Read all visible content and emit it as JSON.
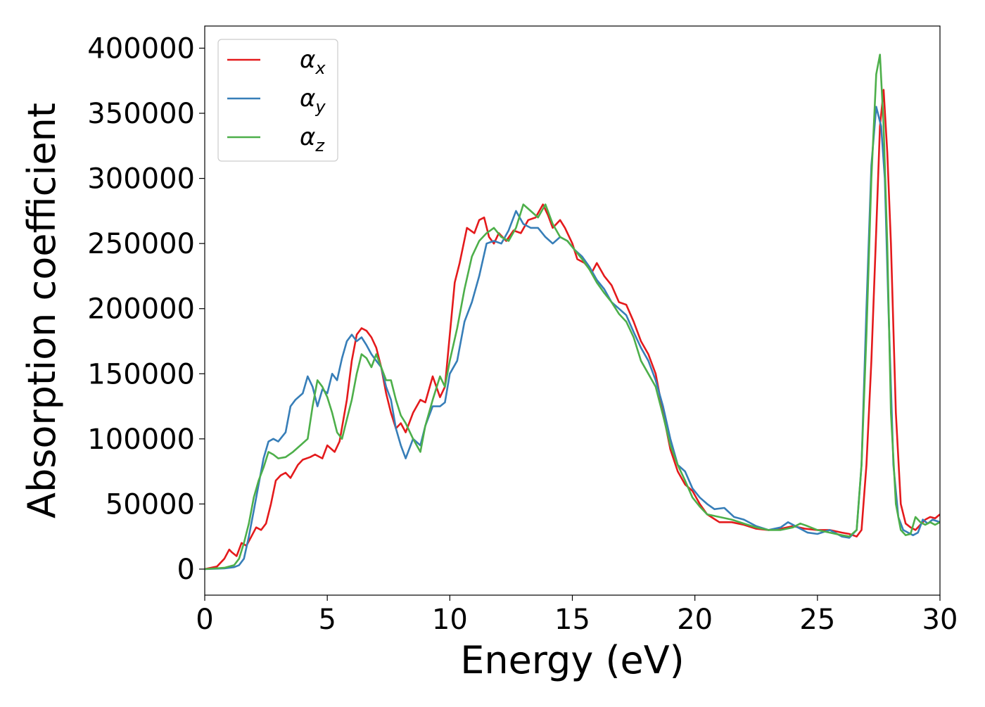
{
  "chart_data": {
    "type": "line",
    "title": "",
    "xlabel": "Energy (eV)",
    "ylabel": "Absorption coefficient",
    "xlim": [
      0,
      30
    ],
    "ylim": [
      -20000,
      417000
    ],
    "xticks": [
      0,
      5,
      10,
      15,
      20,
      25,
      30
    ],
    "yticks": [
      0,
      50000,
      100000,
      150000,
      200000,
      250000,
      300000,
      350000,
      400000
    ],
    "grid": false,
    "legend_position": "top-left",
    "series": [
      {
        "name": "αx",
        "name_base": "α",
        "name_sub": "x",
        "color": "#e41a1c",
        "x": [
          0,
          0.5,
          0.8,
          1.0,
          1.1,
          1.3,
          1.5,
          1.7,
          1.9,
          2.1,
          2.3,
          2.5,
          2.7,
          2.9,
          3.1,
          3.3,
          3.5,
          3.8,
          4.0,
          4.3,
          4.5,
          4.8,
          5.0,
          5.3,
          5.5,
          5.8,
          6.0,
          6.2,
          6.4,
          6.6,
          6.8,
          7.0,
          7.2,
          7.4,
          7.6,
          7.8,
          8.0,
          8.2,
          8.5,
          8.8,
          9.0,
          9.3,
          9.6,
          9.8,
          10.0,
          10.2,
          10.4,
          10.7,
          11.0,
          11.2,
          11.4,
          11.6,
          11.8,
          12.0,
          12.3,
          12.6,
          12.9,
          13.2,
          13.5,
          13.8,
          14.0,
          14.2,
          14.5,
          14.7,
          15.0,
          15.2,
          15.5,
          15.8,
          16.0,
          16.3,
          16.6,
          16.9,
          17.2,
          17.5,
          17.8,
          18.1,
          18.4,
          18.7,
          19.0,
          19.3,
          19.6,
          19.9,
          20.2,
          20.5,
          21.0,
          21.5,
          22.0,
          22.5,
          23.0,
          23.5,
          24.0,
          24.5,
          25.0,
          25.5,
          26.0,
          26.3,
          26.6,
          26.8,
          27.0,
          27.2,
          27.4,
          27.55,
          27.7,
          27.85,
          28.0,
          28.2,
          28.4,
          28.6,
          28.8,
          29.0,
          29.2,
          29.4,
          29.6,
          29.8,
          30.0
        ],
        "y": [
          0,
          2000,
          8000,
          15000,
          13000,
          10000,
          20000,
          18000,
          25000,
          32000,
          30000,
          35000,
          50000,
          68000,
          72000,
          74000,
          70000,
          80000,
          84000,
          86000,
          88000,
          85000,
          95000,
          90000,
          98000,
          130000,
          160000,
          180000,
          185000,
          183000,
          178000,
          170000,
          155000,
          135000,
          120000,
          108000,
          112000,
          105000,
          120000,
          130000,
          128000,
          148000,
          132000,
          140000,
          180000,
          220000,
          235000,
          262000,
          258000,
          268000,
          270000,
          255000,
          250000,
          258000,
          252000,
          260000,
          258000,
          268000,
          270000,
          280000,
          272000,
          262000,
          268000,
          262000,
          250000,
          238000,
          235000,
          228000,
          235000,
          225000,
          218000,
          205000,
          203000,
          190000,
          175000,
          165000,
          150000,
          120000,
          92000,
          75000,
          65000,
          60000,
          50000,
          42000,
          36000,
          36000,
          34000,
          31000,
          30000,
          31000,
          33000,
          31000,
          30000,
          30000,
          28000,
          27000,
          25000,
          30000,
          80000,
          160000,
          260000,
          340000,
          368000,
          320000,
          250000,
          120000,
          50000,
          35000,
          32000,
          30000,
          34000,
          38000,
          40000,
          39000,
          42000
        ]
      },
      {
        "name": "αy",
        "name_base": "α",
        "name_sub": "y",
        "color": "#377eb8",
        "x": [
          0,
          0.8,
          1.2,
          1.4,
          1.6,
          1.8,
          2.0,
          2.2,
          2.4,
          2.6,
          2.8,
          3.0,
          3.3,
          3.5,
          3.7,
          4.0,
          4.2,
          4.4,
          4.6,
          4.8,
          5.0,
          5.2,
          5.4,
          5.6,
          5.8,
          6.0,
          6.2,
          6.4,
          6.6,
          6.8,
          7.0,
          7.2,
          7.4,
          7.6,
          7.8,
          8.0,
          8.2,
          8.5,
          8.8,
          9.0,
          9.3,
          9.6,
          9.8,
          10.0,
          10.3,
          10.6,
          10.9,
          11.2,
          11.5,
          11.8,
          12.1,
          12.4,
          12.7,
          13.0,
          13.3,
          13.6,
          13.9,
          14.2,
          14.5,
          14.8,
          15.1,
          15.4,
          15.7,
          16.0,
          16.3,
          16.6,
          16.9,
          17.2,
          17.5,
          17.8,
          18.1,
          18.4,
          18.7,
          19.0,
          19.3,
          19.6,
          19.9,
          20.2,
          20.5,
          20.8,
          21.2,
          21.6,
          22.0,
          22.5,
          23.0,
          23.5,
          23.8,
          24.2,
          24.6,
          25.0,
          25.5,
          26.0,
          26.3,
          26.6,
          26.8,
          27.0,
          27.2,
          27.4,
          27.6,
          27.75,
          27.9,
          28.1,
          28.3,
          28.5,
          28.7,
          28.9,
          29.1,
          29.3,
          29.5,
          29.7,
          30.0
        ],
        "y": [
          0,
          500,
          1500,
          3000,
          8000,
          25000,
          45000,
          65000,
          85000,
          98000,
          100000,
          98000,
          105000,
          125000,
          130000,
          135000,
          148000,
          140000,
          125000,
          138000,
          135000,
          150000,
          145000,
          162000,
          175000,
          180000,
          175000,
          178000,
          172000,
          165000,
          160000,
          155000,
          140000,
          130000,
          108000,
          95000,
          85000,
          100000,
          95000,
          110000,
          125000,
          125000,
          128000,
          150000,
          160000,
          190000,
          205000,
          225000,
          250000,
          252000,
          250000,
          260000,
          275000,
          265000,
          262000,
          262000,
          255000,
          250000,
          255000,
          252000,
          245000,
          240000,
          232000,
          222000,
          215000,
          205000,
          200000,
          195000,
          182000,
          170000,
          160000,
          145000,
          125000,
          100000,
          80000,
          75000,
          62000,
          55000,
          50000,
          46000,
          47000,
          40000,
          38000,
          33000,
          30000,
          32000,
          36000,
          32000,
          28000,
          27000,
          30000,
          25000,
          24000,
          30000,
          80000,
          200000,
          310000,
          355000,
          340000,
          300000,
          200000,
          80000,
          40000,
          30000,
          28000,
          26000,
          28000,
          38000,
          35000,
          38000,
          36000
        ]
      },
      {
        "name": "αz",
        "name_base": "α",
        "name_sub": "z",
        "color": "#4daf4a",
        "x": [
          0,
          0.8,
          1.2,
          1.4,
          1.6,
          1.8,
          2.0,
          2.2,
          2.4,
          2.6,
          2.8,
          3.0,
          3.3,
          3.6,
          3.9,
          4.2,
          4.4,
          4.6,
          4.8,
          5.0,
          5.2,
          5.4,
          5.6,
          5.8,
          6.0,
          6.2,
          6.4,
          6.6,
          6.8,
          7.0,
          7.2,
          7.4,
          7.6,
          7.8,
          8.0,
          8.2,
          8.5,
          8.8,
          9.0,
          9.3,
          9.6,
          9.8,
          10.0,
          10.3,
          10.6,
          10.9,
          11.2,
          11.5,
          11.8,
          12.1,
          12.4,
          12.7,
          13.0,
          13.3,
          13.6,
          13.9,
          14.2,
          14.5,
          14.8,
          15.1,
          15.4,
          15.7,
          16.0,
          16.3,
          16.6,
          16.9,
          17.2,
          17.5,
          17.8,
          18.1,
          18.4,
          18.7,
          19.0,
          19.3,
          19.6,
          19.9,
          20.2,
          20.5,
          21.0,
          21.5,
          22.0,
          22.5,
          23.0,
          23.5,
          24.0,
          24.3,
          24.6,
          25.0,
          25.5,
          26.0,
          26.3,
          26.6,
          26.8,
          27.0,
          27.2,
          27.4,
          27.55,
          27.7,
          27.85,
          28.0,
          28.2,
          28.4,
          28.6,
          28.8,
          29.0,
          29.2,
          29.4,
          29.6,
          29.8,
          30.0
        ],
        "y": [
          0,
          1000,
          3000,
          8000,
          20000,
          35000,
          55000,
          68000,
          78000,
          90000,
          88000,
          85000,
          86000,
          90000,
          95000,
          100000,
          125000,
          145000,
          140000,
          132000,
          120000,
          105000,
          100000,
          115000,
          130000,
          150000,
          165000,
          162000,
          155000,
          165000,
          155000,
          145000,
          145000,
          130000,
          118000,
          112000,
          100000,
          90000,
          110000,
          130000,
          148000,
          140000,
          160000,
          185000,
          215000,
          240000,
          252000,
          258000,
          262000,
          255000,
          252000,
          262000,
          280000,
          275000,
          270000,
          280000,
          265000,
          255000,
          252000,
          245000,
          238000,
          230000,
          220000,
          212000,
          205000,
          196000,
          190000,
          178000,
          160000,
          150000,
          140000,
          118000,
          95000,
          80000,
          68000,
          55000,
          48000,
          42000,
          40000,
          38000,
          35000,
          32000,
          30000,
          30000,
          32000,
          35000,
          33000,
          30000,
          28000,
          26000,
          25000,
          30000,
          80000,
          180000,
          300000,
          380000,
          395000,
          340000,
          250000,
          120000,
          50000,
          30000,
          26000,
          27000,
          40000,
          36000,
          34000,
          36000,
          34000,
          36000
        ]
      }
    ]
  }
}
